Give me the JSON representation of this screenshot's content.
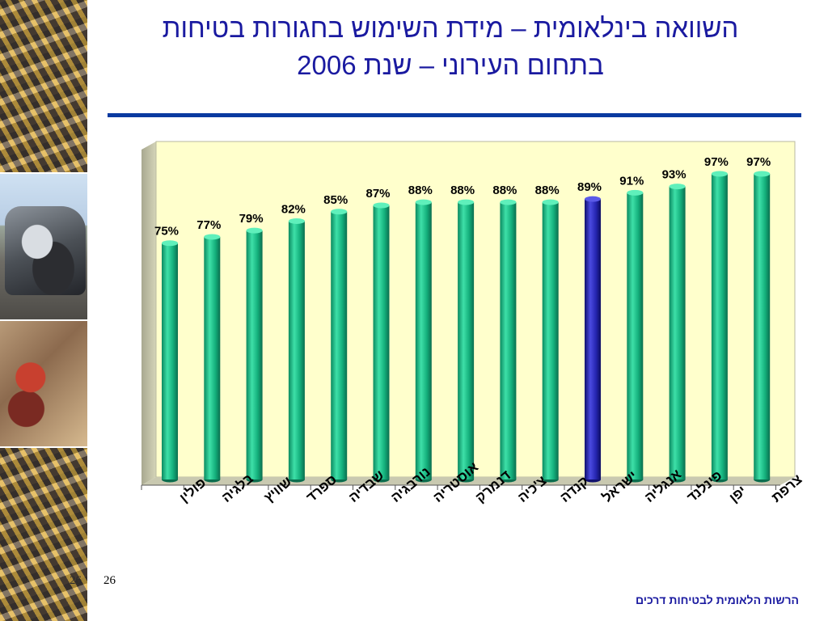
{
  "slide": {
    "title_line1": "השוואה בינלאומית – מידת השימוש בחגורות בטיחות",
    "title_line2": "בתחום העירוני – שנת 2006",
    "page_number": "26",
    "page_number_shadow": "26",
    "footer": "הרשות הלאומית לבטיחות דרכים"
  },
  "colors": {
    "title": "#1a1aa0",
    "rule": "#0a3aa0",
    "plot_bg": "#ffffcc",
    "bar_default": "#19c08a",
    "bar_highlight": "#2525b0"
  },
  "chart_data": {
    "type": "bar",
    "title": "",
    "xlabel": "",
    "ylabel": "",
    "ylim": [
      0,
      100
    ],
    "grid": false,
    "categories": [
      "פולין",
      "בלגיה",
      "שוויץ",
      "ספרד",
      "שבדיה",
      "נורבגיה",
      "אוסטריה",
      "דנמרק",
      "צ'כיה",
      "קנדה",
      "ישראל",
      "אנגליה",
      "פינלנד",
      "יפן",
      "צרפת"
    ],
    "values": [
      75,
      77,
      79,
      82,
      85,
      87,
      88,
      88,
      88,
      88,
      89,
      91,
      93,
      97,
      97
    ],
    "data_labels": [
      "75%",
      "77%",
      "79%",
      "82%",
      "85%",
      "87%",
      "88%",
      "88%",
      "88%",
      "88%",
      "89%",
      "91%",
      "93%",
      "97%",
      "97%"
    ],
    "highlight_category": "ישראל"
  }
}
